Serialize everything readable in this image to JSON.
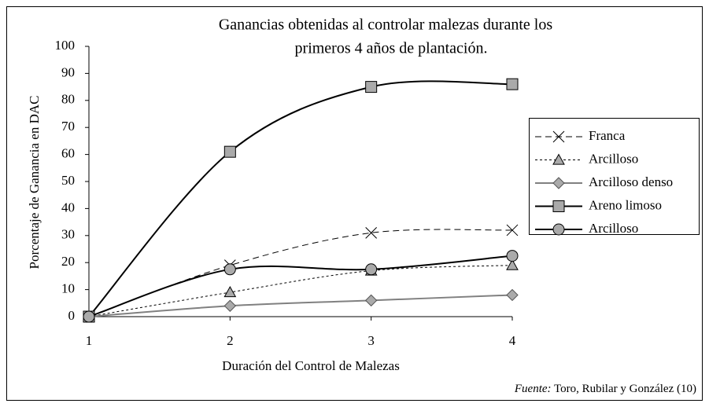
{
  "chart_data": {
    "type": "line",
    "title_lines": [
      "Ganancias obtenidas al controlar malezas durante los",
      "primeros 4 años de plantación."
    ],
    "x_label": "Duración del Control de Malezas",
    "y_label": "Porcentaje de Ganancia en DAC",
    "x": [
      1,
      2,
      3,
      4
    ],
    "xlim": [
      1,
      4
    ],
    "xticks": [
      1,
      2,
      3,
      4
    ],
    "ylim": [
      0,
      100
    ],
    "yticks": [
      0,
      10,
      20,
      30,
      40,
      50,
      60,
      70,
      80,
      90,
      100
    ],
    "legend": "right",
    "series": [
      {
        "name": "Franca",
        "color": "#000000",
        "marker": "x",
        "dash": "dashed",
        "values": [
          0,
          19,
          31,
          32
        ]
      },
      {
        "name": "Arcilloso",
        "color": "#000000",
        "marker": "triangle",
        "dash": "dotted",
        "values": [
          0,
          9,
          17,
          19
        ]
      },
      {
        "name": "Arcilloso denso",
        "color": "#808080",
        "marker": "diamond",
        "dash": "solid",
        "values": [
          0,
          4,
          6,
          8
        ]
      },
      {
        "name": "Areno limoso",
        "color": "#000000",
        "marker": "square",
        "dash": "solid",
        "values": [
          0,
          61,
          85,
          86
        ]
      },
      {
        "name": "Arcilloso",
        "color": "#000000",
        "marker": "circle",
        "dash": "solid",
        "values": [
          0,
          17.5,
          17.5,
          22.5
        ]
      }
    ],
    "source_label": "Fuente:",
    "source_text": "Toro, Rubilar y González (10)"
  }
}
